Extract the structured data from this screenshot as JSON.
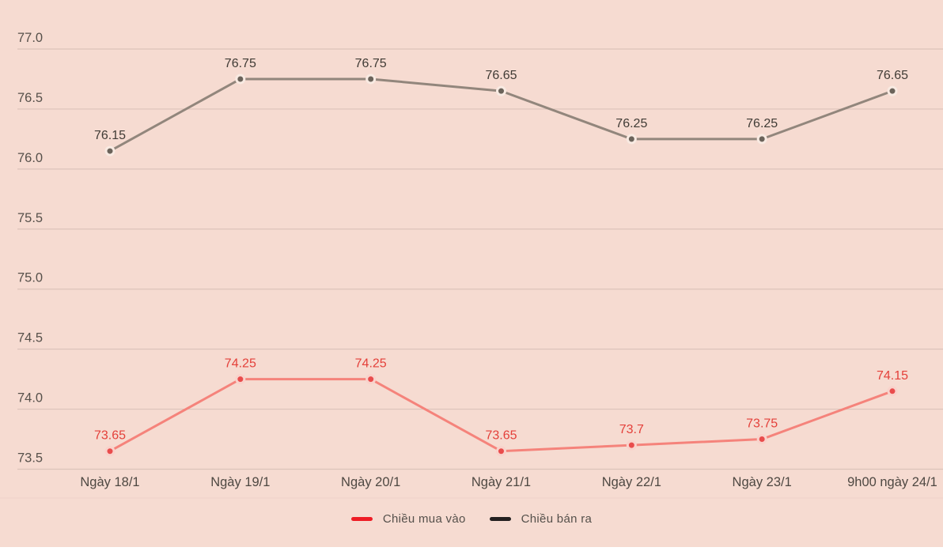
{
  "chart_data": {
    "type": "line",
    "title": "",
    "categories": [
      "Ngày 18/1",
      "Ngày 19/1",
      "Ngày 20/1",
      "Ngày 21/1",
      "Ngày 22/1",
      "Ngày 23/1",
      "9h00 ngày 24/1"
    ],
    "series": [
      {
        "name": "Chiều mua vào",
        "slug": "chieu-mua-vao",
        "values": [
          73.65,
          74.25,
          74.25,
          73.65,
          73.7,
          73.75,
          74.15
        ],
        "line_color": "#f5837b",
        "dot_color": "#e94c4c",
        "dot_halo": "#f9d2cb",
        "label_color": "#e4403a",
        "legend_color": "#ee1c25"
      },
      {
        "name": "Chiều bán ra",
        "slug": "chieu-ban-ra",
        "values": [
          76.15,
          76.75,
          76.75,
          76.65,
          76.25,
          76.25,
          76.65
        ],
        "line_color": "#92867c",
        "dot_color": "#6b635a",
        "dot_halo": "#f8eae2",
        "label_color": "#403b35",
        "legend_color": "#232020"
      }
    ],
    "y_ticks": [
      "77.0",
      "76.5",
      "76.0",
      "75.5",
      "75.0",
      "74.5",
      "74.0",
      "73.5"
    ],
    "ylim": [
      73.5,
      77.0
    ],
    "grid": true,
    "legend_position": "bottom",
    "colors": {
      "background": "#f6dbd1",
      "gridline": "#dcc3ba",
      "tick_label": "#57514b",
      "x_label": "#4e4842",
      "legend_text": "#55504b"
    }
  }
}
